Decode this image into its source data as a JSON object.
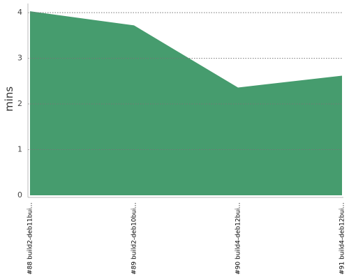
{
  "chart_data": {
    "type": "area",
    "y_label": "mins",
    "categories": [
      "#88 build2-deb11bui...",
      "#89 build2-deb10bui...",
      "#90 build4-deb12bui...",
      "#91 build4-deb12bui..."
    ],
    "values": [
      4.03,
      3.72,
      2.36,
      2.62
    ],
    "color": "#469c6e",
    "ylim": [
      0,
      4.2
    ],
    "yticks": [
      0,
      1,
      2,
      3,
      4
    ],
    "grid": true
  }
}
